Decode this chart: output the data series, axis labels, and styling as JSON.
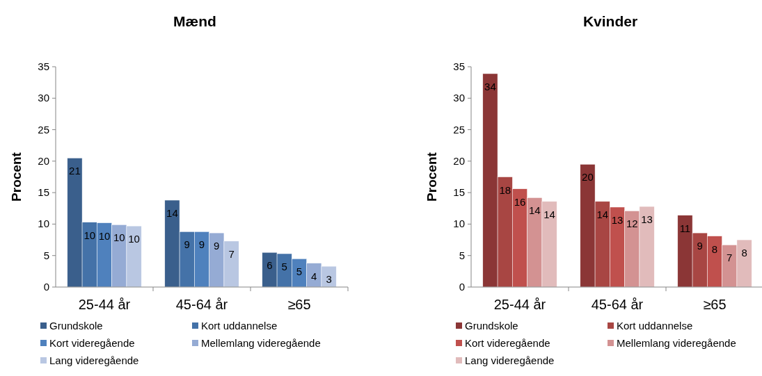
{
  "chart_data": [
    {
      "type": "bar",
      "title": "Mænd",
      "ylabel": "Procent",
      "categories": [
        "25-44 år",
        "45-64 år",
        "≥65"
      ],
      "ylim": [
        0,
        35
      ],
      "yticks": [
        0,
        5,
        10,
        15,
        20,
        25,
        30,
        35
      ],
      "legend": "bottom",
      "series": [
        {
          "name": "Grundskole",
          "color": "#3a5f8c",
          "values": [
            20.5,
            13.8,
            5.5
          ],
          "value_labels": [
            "21",
            "14",
            "6"
          ]
        },
        {
          "name": "Kort uddannelse",
          "color": "#4472a8",
          "values": [
            10.3,
            8.8,
            5.3
          ],
          "value_labels": [
            "10",
            "9",
            "5"
          ]
        },
        {
          "name": "Kort videregående",
          "color": "#4f81bd",
          "values": [
            10.2,
            8.8,
            4.5
          ],
          "value_labels": [
            "10",
            "9",
            "5"
          ]
        },
        {
          "name": "Mellemlang videregående",
          "color": "#95abd4",
          "values": [
            9.9,
            8.6,
            3.8
          ],
          "value_labels": [
            "10",
            "9",
            "4"
          ]
        },
        {
          "name": "Lang videregående",
          "color": "#b9c7e2",
          "values": [
            9.7,
            7.3,
            3.3
          ],
          "value_labels": [
            "10",
            "7",
            "3"
          ]
        }
      ]
    },
    {
      "type": "bar",
      "title": "Kvinder",
      "ylabel": "Procent",
      "categories": [
        "25-44 år",
        "45-64 år",
        "≥65"
      ],
      "ylim": [
        0,
        35
      ],
      "yticks": [
        0,
        5,
        10,
        15,
        20,
        25,
        30,
        35
      ],
      "legend": "bottom",
      "series": [
        {
          "name": "Grundskole",
          "color": "#8b3636",
          "values": [
            33.9,
            19.5,
            11.4
          ],
          "value_labels": [
            "34",
            "20",
            "11"
          ]
        },
        {
          "name": "Kort uddannelse",
          "color": "#a84643",
          "values": [
            17.5,
            13.6,
            8.6
          ],
          "value_labels": [
            "18",
            "14",
            "9"
          ]
        },
        {
          "name": "Kort videregående",
          "color": "#c0504d",
          "values": [
            15.6,
            12.7,
            8.1
          ],
          "value_labels": [
            "16",
            "13",
            "8"
          ]
        },
        {
          "name": "Mellemlang videregående",
          "color": "#d39292",
          "values": [
            14.2,
            12.1,
            6.7
          ],
          "value_labels": [
            "14",
            "12",
            "7"
          ]
        },
        {
          "name": "Lang videregående",
          "color": "#e1bbbb",
          "values": [
            13.6,
            12.8,
            7.5
          ],
          "value_labels": [
            "14",
            "13",
            "8"
          ]
        }
      ]
    }
  ]
}
